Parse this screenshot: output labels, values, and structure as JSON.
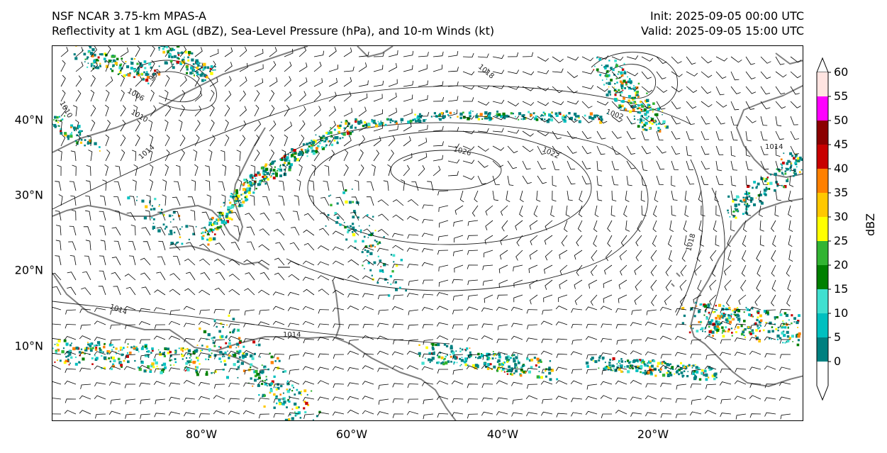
{
  "header": {
    "title_line1": "NSF NCAR 3.75-km MPAS-A",
    "title_line2": "Reflectivity at 1 km AGL (dBZ), Sea-Level Pressure (hPa), and 10-m Winds (kt)",
    "init": "Init: 2025-09-05 00:00 UTC",
    "valid": "Valid: 2025-09-05 15:00 UTC"
  },
  "axes": {
    "lat_labels": [
      "40°N",
      "30°N",
      "20°N",
      "10°N"
    ],
    "lon_labels": [
      "80°W",
      "60°W",
      "40°W",
      "20°W"
    ]
  },
  "colorbar": {
    "unit": "dBZ",
    "levels": [
      "0",
      "5",
      "10",
      "15",
      "20",
      "25",
      "30",
      "35",
      "40",
      "45",
      "50",
      "55",
      "60"
    ],
    "colors": [
      "#008080",
      "#00c0c0",
      "#40e0d0",
      "#008000",
      "#32b432",
      "#ffff00",
      "#ffc800",
      "#ff8000",
      "#c80000",
      "#8b0000",
      "#ff00ff",
      "#ffe4e1"
    ]
  },
  "isobars": [
    "1026",
    "1022",
    "1018",
    "1014",
    "1010",
    "1006",
    "1002",
    "998",
    "1014",
    "1014",
    "1010",
    "1018",
    "1014"
  ],
  "map_colors": {
    "coastline": "#7f7f7f",
    "isobar": "#222222",
    "barb": "#000000"
  }
}
